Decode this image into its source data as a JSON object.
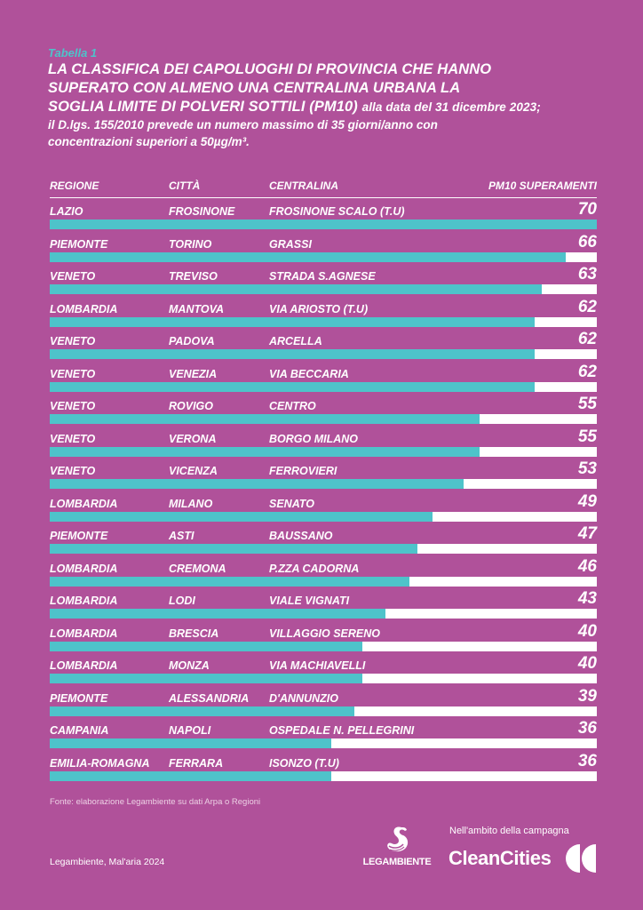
{
  "header": {
    "tag": "Tabella 1",
    "title_line1": "LA CLASSIFICA DEI CAPOLUOGHI DI PROVINCIA CHE HANNO",
    "title_line2": "SUPERATO CON ALMENO UNA CENTRALINA URBANA LA",
    "title_line3": "SOGLIA LIMITE DI POLVERI SOTTILI (PM10)",
    "title_suffix": "alla data del 31 dicembre 2023;",
    "desc_line1": "il D.lgs. 155/2010 prevede un numero massimo di 35 giorni/anno con",
    "desc_line2": "concentrazioni superiori a 50µg/m³."
  },
  "table": {
    "columns": [
      "REGIONE",
      "CITTÀ",
      "CENTRALINA",
      "PM10 SUPERAMENTI"
    ],
    "max_scale": 70,
    "rows": [
      {
        "regione": "LAZIO",
        "citta": "FROSINONE",
        "centralina": "FROSINONE SCALO (T.U)",
        "value": 70
      },
      {
        "regione": "PIEMONTE",
        "citta": "TORINO",
        "centralina": "GRASSI",
        "value": 66
      },
      {
        "regione": "VENETO",
        "citta": "TREVISO",
        "centralina": "STRADA S.AGNESE",
        "value": 63
      },
      {
        "regione": "LOMBARDIA",
        "citta": "MANTOVA",
        "centralina": "VIA ARIOSTO (T.U)",
        "value": 62
      },
      {
        "regione": "VENETO",
        "citta": "PADOVA",
        "centralina": "ARCELLA",
        "value": 62
      },
      {
        "regione": "VENETO",
        "citta": "VENEZIA",
        "centralina": "VIA BECCARIA",
        "value": 62
      },
      {
        "regione": "VENETO",
        "citta": "ROVIGO",
        "centralina": "CENTRO",
        "value": 55
      },
      {
        "regione": "VENETO",
        "citta": "VERONA",
        "centralina": "BORGO MILANO",
        "value": 55
      },
      {
        "regione": "VENETO",
        "citta": "VICENZA",
        "centralina": "FERROVIERI",
        "value": 53
      },
      {
        "regione": "LOMBARDIA",
        "citta": "MILANO",
        "centralina": "SENATO",
        "value": 49
      },
      {
        "regione": "PIEMONTE",
        "citta": "ASTI",
        "centralina": "BAUSSANO",
        "value": 47
      },
      {
        "regione": "LOMBARDIA",
        "citta": "CREMONA",
        "centralina": "P.ZZA CADORNA",
        "value": 46
      },
      {
        "regione": "LOMBARDIA",
        "citta": "LODI",
        "centralina": "VIALE VIGNATI",
        "value": 43
      },
      {
        "regione": "LOMBARDIA",
        "citta": "BRESCIA",
        "centralina": "VILLAGGIO SERENO",
        "value": 40
      },
      {
        "regione": "LOMBARDIA",
        "citta": "MONZA",
        "centralina": "VIA MACHIAVELLI",
        "value": 40
      },
      {
        "regione": "PIEMONTE",
        "citta": "ALESSANDRIA",
        "centralina": "D'ANNUNZIO",
        "value": 39
      },
      {
        "regione": "CAMPANIA",
        "citta": "NAPOLI",
        "centralina": "OSPEDALE N. PELLEGRINI",
        "value": 36
      },
      {
        "regione": "EMILIA-ROMAGNA",
        "citta": "FERRARA",
        "centralina": "ISONZO (T.U)",
        "value": 36
      }
    ]
  },
  "footer": {
    "source": "Fonte: elaborazione Legambiente su dati Arpa o Regioni",
    "credit": "Legambiente, Mal'aria 2024",
    "legambiente_logo": "LEGAMBIENTE",
    "campaign_label": "Nell'ambito della campagna",
    "campaign_name": "CleanCities"
  },
  "colors": {
    "background": "#b0519a",
    "bar": "#4ec3ca",
    "track": "#ffffff",
    "tag": "#4ec3ca"
  }
}
